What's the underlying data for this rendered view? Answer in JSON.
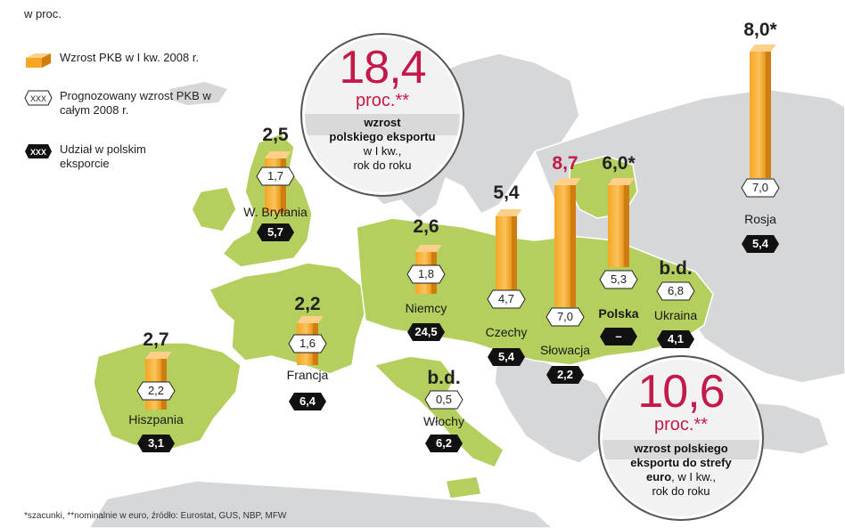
{
  "legend": {
    "units": "w proc.",
    "gdp_q1_label": "Wzrost PKB w I kw. 2008 r.",
    "forecast_label": "Prognozowany wzrost PKB w całym 2008 r.",
    "export_share_label": "Udział w polskim eksporcie",
    "hex_placeholder": "XXX"
  },
  "countries": [
    {
      "id": "uk",
      "name": "W. Brytania",
      "gdp_q1": "2,5",
      "forecast": "1,7",
      "export_share": "5,7"
    },
    {
      "id": "es",
      "name": "Hiszpania",
      "gdp_q1": "2,7",
      "forecast": "2,2",
      "export_share": "3,1"
    },
    {
      "id": "fr",
      "name": "Francja",
      "gdp_q1": "2,2",
      "forecast": "1,6",
      "export_share": "6,4"
    },
    {
      "id": "de",
      "name": "Niemcy",
      "gdp_q1": "2,6",
      "forecast": "1,8",
      "export_share": "24,5"
    },
    {
      "id": "it",
      "name": "Włochy",
      "gdp_q1": "b.d.",
      "forecast": "0,5",
      "export_share": "6,2"
    },
    {
      "id": "cz",
      "name": "Czechy",
      "gdp_q1": "5,4",
      "forecast": "4,7",
      "export_share": "5,4"
    },
    {
      "id": "sk",
      "name": "Słowacja",
      "gdp_q1": "8,7",
      "forecast": "7,0",
      "export_share": "2,2"
    },
    {
      "id": "pl",
      "name": "Polska",
      "gdp_q1": "6,0*",
      "forecast": "5,3",
      "export_share": "–"
    },
    {
      "id": "ua",
      "name": "Ukraina",
      "gdp_q1": "b.d.",
      "forecast": "6,8",
      "export_share": "4,1"
    },
    {
      "id": "ru",
      "name": "Rosja",
      "gdp_q1": "8,0*",
      "forecast": "7,0",
      "export_share": "5,4"
    }
  ],
  "bubble_export": {
    "value": "18,4",
    "unit": "proc.**",
    "desc_line1": "wzrost",
    "desc_line2": "polskiego eksportu",
    "desc_line3": "w I kw.,",
    "desc_line4": "rok do roku"
  },
  "bubble_euro": {
    "value": "10,6",
    "unit": "proc.**",
    "desc_line1": "wzrost polskiego",
    "desc_line2": "eksportu do strefy",
    "desc_line3_bold": "euro",
    "desc_line3_rest": ", w I kw.,",
    "desc_line4": "rok do roku"
  },
  "footnote": "*szacunki, **nominalnie w euro, źródło: Eurostat, GUS, NBP, MFW",
  "colors": {
    "highlighted_land": "#b5cf5f",
    "other_land": "#d5d7d9",
    "sea": "#ffffff",
    "bar": "#f5a623",
    "accent_red": "#c41a4a",
    "hex_dark": "#111111"
  }
}
